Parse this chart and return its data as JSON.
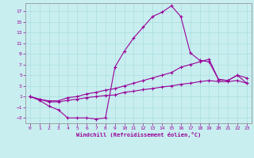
{
  "xlabel": "Windchill (Refroidissement éolien,°C)",
  "background_color": "#c8eef0",
  "line_color": "#990099",
  "grid_color": "#aadddd",
  "xlim": [
    -0.5,
    23.5
  ],
  "ylim": [
    -4,
    18.5
  ],
  "xticks": [
    0,
    1,
    2,
    3,
    4,
    5,
    6,
    7,
    8,
    9,
    10,
    11,
    12,
    13,
    14,
    15,
    16,
    17,
    18,
    19,
    20,
    21,
    22,
    23
  ],
  "yticks": [
    -3,
    -1,
    1,
    3,
    5,
    7,
    9,
    11,
    13,
    15,
    17
  ],
  "line1_x": [
    0,
    1,
    2,
    3,
    4,
    5,
    6,
    7,
    8,
    9,
    10,
    11,
    12,
    13,
    14,
    15,
    16,
    17,
    18,
    19,
    20,
    21,
    22,
    23
  ],
  "line1_y": [
    1,
    0.3,
    -0.8,
    -1.5,
    -3.0,
    -3.0,
    -3.0,
    -3.2,
    -3.0,
    6.5,
    9.5,
    12.0,
    14.0,
    16.0,
    16.8,
    18.0,
    16.0,
    9.2,
    7.8,
    7.5,
    4.2,
    4.0,
    5.0,
    4.5
  ],
  "line2_x": [
    0,
    1,
    2,
    3,
    4,
    5,
    6,
    7,
    8,
    9,
    10,
    11,
    12,
    13,
    14,
    15,
    16,
    17,
    18,
    19,
    20,
    21,
    22,
    23
  ],
  "line2_y": [
    1,
    0.5,
    0.2,
    0.2,
    0.8,
    1.0,
    1.5,
    1.8,
    2.2,
    2.5,
    3.0,
    3.5,
    4.0,
    4.5,
    5.0,
    5.5,
    6.5,
    7.0,
    7.5,
    8.0,
    4.2,
    4.0,
    5.0,
    3.5
  ],
  "line3_x": [
    0,
    1,
    2,
    3,
    4,
    5,
    6,
    7,
    8,
    9,
    10,
    11,
    12,
    13,
    14,
    15,
    16,
    17,
    18,
    19,
    20,
    21,
    22,
    23
  ],
  "line3_y": [
    1,
    0.5,
    0.0,
    0.0,
    0.3,
    0.5,
    0.8,
    1.0,
    1.2,
    1.3,
    1.8,
    2.0,
    2.3,
    2.5,
    2.8,
    3.0,
    3.3,
    3.5,
    3.8,
    4.0,
    3.8,
    3.8,
    4.0,
    3.5
  ]
}
